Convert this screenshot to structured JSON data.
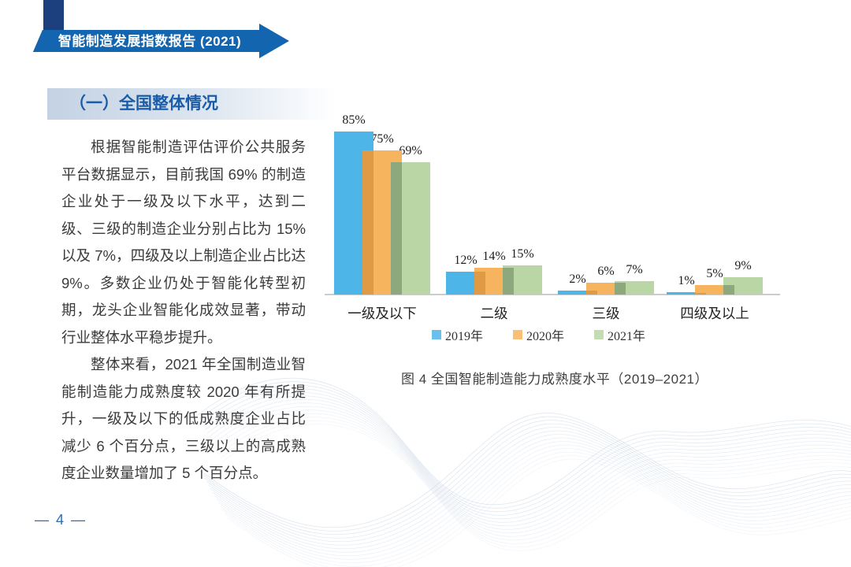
{
  "page": {
    "banner_title": "智能制造发展指数报告 (2021)",
    "section_heading": "（一）全国整体情况",
    "paragraphs": [
      "根据智能制造评估评价公共服务平台数据显示，目前我国 69% 的制造企业处于一级及以下水平，达到二级、三级的制造企业分别占比为 15% 以及 7%，四级及以上制造企业占比达 9%。多数企业仍处于智能化转型初期，龙头企业智能化成效显著，带动行业整体水平稳步提升。",
      "整体来看，2021 年全国制造业智能制造能力成熟度较 2020 年有所提升，一级及以下的低成熟度企业占比减少 6 个百分点，三级以上的高成熟度企业数量增加了 5 个百分点。"
    ],
    "figure_caption": "图 4  全国智能制造能力成熟度水平（2019–2021）",
    "page_number": "— 4 —"
  },
  "chart_data": {
    "type": "bar",
    "title": "全国智能制造能力成熟度水平（2019–2021）",
    "categories": [
      "一级及以下",
      "二级",
      "三级",
      "四级及以上"
    ],
    "series": [
      {
        "name": "2019年",
        "values": [
          85,
          12,
          2,
          1
        ],
        "color": "#4db5e7",
        "overlap_color": null
      },
      {
        "name": "2020年",
        "values": [
          75,
          14,
          6,
          5
        ],
        "color": "#f7b45e",
        "overlap_color": "#e09a43"
      },
      {
        "name": "2021年",
        "values": [
          69,
          15,
          7,
          9
        ],
        "color": "#b9d6a4",
        "overlap_color": "#8ca87c"
      }
    ],
    "value_suffix": "%",
    "xlabel": "",
    "ylabel": "",
    "ylim": [
      0,
      100
    ],
    "grid": false,
    "legend_position": "bottom"
  },
  "colors": {
    "banner_block": "#1c3f7e",
    "banner_arrow": "#1465b0",
    "banner_fold": "#0d4a85",
    "heading_text": "#1a5ca8",
    "axis_line": "#cccccc",
    "page_number": "#2a6db5",
    "wave_line": "#b9c9dc"
  }
}
